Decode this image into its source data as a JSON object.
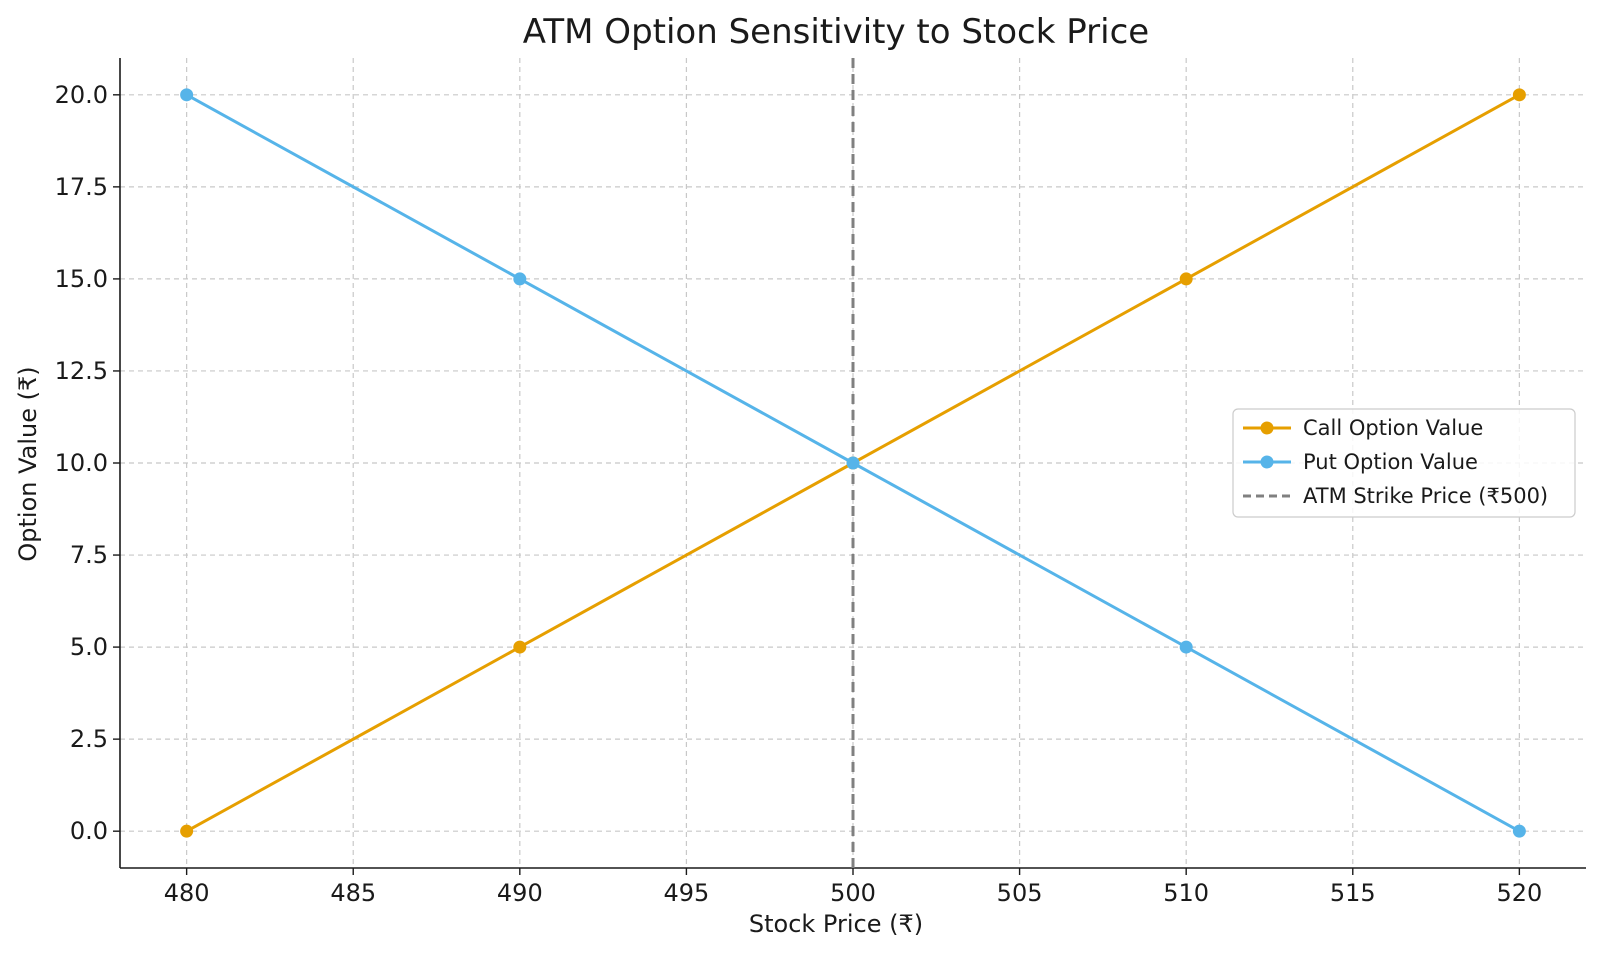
{
  "chart_data": {
    "type": "line",
    "title": "ATM Option Sensitivity to Stock Price",
    "xlabel": "Stock Price (₹)",
    "ylabel": "Option Value (₹)",
    "xlim": [
      478,
      522
    ],
    "ylim": [
      -1,
      21
    ],
    "x_ticks": [
      480,
      485,
      490,
      495,
      500,
      505,
      510,
      515,
      520
    ],
    "x_tick_labels": [
      "480",
      "485",
      "490",
      "495",
      "500",
      "505",
      "510",
      "515",
      "520"
    ],
    "y_ticks": [
      0,
      2.5,
      5,
      7.5,
      10,
      12.5,
      15,
      17.5,
      20
    ],
    "y_tick_labels": [
      "0.0",
      "2.5",
      "5.0",
      "7.5",
      "10.0",
      "12.5",
      "15.0",
      "17.5",
      "20.0"
    ],
    "grid": true,
    "legend_position": "center-right",
    "x": [
      480,
      490,
      500,
      510,
      520
    ],
    "series": [
      {
        "name": "Call Option Value",
        "values": [
          0,
          5,
          10,
          15,
          20
        ],
        "color": "#E69F00",
        "marker": "circle"
      },
      {
        "name": "Put Option Value",
        "values": [
          20,
          15,
          10,
          5,
          0
        ],
        "color": "#56B4E9",
        "marker": "circle"
      }
    ],
    "reference_line": {
      "name": "ATM Strike Price (₹500)",
      "x": 500,
      "color": "#808080",
      "style": "dashed"
    }
  }
}
